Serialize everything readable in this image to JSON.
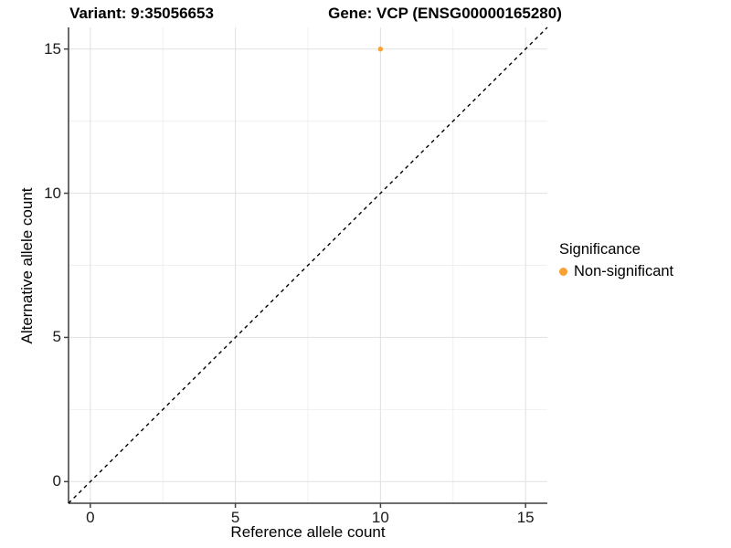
{
  "titles": {
    "left": "Variant: 9:35056653",
    "right": "Gene: VCP (ENSG00000165280)"
  },
  "axes": {
    "x_label": "Reference allele count",
    "y_label": "Alternative allele count"
  },
  "legend": {
    "title": "Significance",
    "items": [
      {
        "label": "Non-significant",
        "color": "#F9A134"
      }
    ]
  },
  "colors": {
    "point_orange": "#F9A134",
    "axis_line": "#595959",
    "grid_major": "#e4e4e4",
    "grid_minor": "#f0f0f0",
    "reference_line": "#000000",
    "background": "#ffffff"
  },
  "chart_data": {
    "type": "scatter",
    "title": "Variant: 9:35056653 | Gene: VCP (ENSG00000165280)",
    "xlabel": "Reference allele count",
    "ylabel": "Alternative allele count",
    "xlim": [
      -0.75,
      15.75
    ],
    "ylim": [
      -0.75,
      15.75
    ],
    "x_ticks": [
      0,
      5,
      10,
      15
    ],
    "y_ticks": [
      0,
      5,
      10,
      15
    ],
    "x_minor_ticks": [
      2.5,
      7.5,
      12.5
    ],
    "y_minor_ticks": [
      2.5,
      7.5,
      12.5
    ],
    "grid": true,
    "legend_position": "right",
    "series": [
      {
        "name": "Non-significant",
        "color": "#F9A134",
        "points": [
          {
            "x": 10,
            "y": 15
          }
        ]
      }
    ],
    "reference_line": {
      "slope": 1,
      "intercept": 0,
      "style": "dashed",
      "color": "#000000"
    }
  }
}
